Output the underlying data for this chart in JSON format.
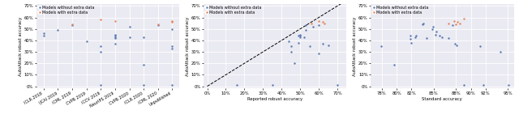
{
  "fig1": {
    "ylabel": "AutoAttack robust accuracy",
    "xlabel": "",
    "xlim": [
      -0.5,
      9.5
    ],
    "ylim": [
      -0.02,
      0.72
    ],
    "yticks": [
      0.0,
      0.1,
      0.2,
      0.3,
      0.4,
      0.5,
      0.6,
      0.7
    ],
    "xtick_labels": [
      "ICLR 2018",
      "IJCAI 2019",
      "ICML 2019",
      "CVPR 2019",
      "ICCV 2019",
      "NeurIPS 2019",
      "CVPR 2020",
      "ICLR 2020",
      "ICML 2020",
      "Unpublished"
    ],
    "blue_points": [
      [
        0,
        0.44
      ],
      [
        0,
        0.46
      ],
      [
        1,
        0.49
      ],
      [
        2,
        0.53
      ],
      [
        3,
        0.39
      ],
      [
        4,
        0.35
      ],
      [
        4,
        0.3
      ],
      [
        4,
        0.01
      ],
      [
        5,
        0.45
      ],
      [
        5,
        0.44
      ],
      [
        5,
        0.43
      ],
      [
        5,
        0.42
      ],
      [
        5,
        0.37
      ],
      [
        6,
        0.52
      ],
      [
        6,
        0.43
      ],
      [
        7,
        0.43
      ],
      [
        7,
        0.19
      ],
      [
        7,
        0.01
      ],
      [
        8,
        0.53
      ],
      [
        9,
        0.5
      ],
      [
        9,
        0.35
      ],
      [
        9,
        0.33
      ],
      [
        9,
        0.01
      ]
    ],
    "orange_points": [
      [
        2,
        0.54
      ],
      [
        4,
        0.58
      ],
      [
        5,
        0.57
      ],
      [
        8,
        0.54
      ],
      [
        9,
        0.57
      ],
      [
        9,
        0.56
      ]
    ]
  },
  "fig2": {
    "ylabel": "AutoAttack robust accuracy",
    "xlabel": "Reported robust accuracy",
    "xlim": [
      -0.02,
      0.75
    ],
    "ylim": [
      -0.02,
      0.72
    ],
    "yticks": [
      0.0,
      0.1,
      0.2,
      0.3,
      0.4,
      0.5,
      0.6,
      0.7
    ],
    "xticks": [
      0.0,
      0.1,
      0.2,
      0.3,
      0.4,
      0.5,
      0.6,
      0.7
    ],
    "blue_points": [
      [
        0.16,
        0.01
      ],
      [
        0.35,
        0.01
      ],
      [
        0.47,
        0.2
      ],
      [
        0.44,
        0.39
      ],
      [
        0.45,
        0.35
      ],
      [
        0.45,
        0.3
      ],
      [
        0.49,
        0.38
      ],
      [
        0.49,
        0.44
      ],
      [
        0.5,
        0.43
      ],
      [
        0.5,
        0.44
      ],
      [
        0.5,
        0.45
      ],
      [
        0.52,
        0.43
      ],
      [
        0.53,
        0.49
      ],
      [
        0.53,
        0.53
      ],
      [
        0.55,
        0.35
      ],
      [
        0.57,
        0.52
      ],
      [
        0.6,
        0.29
      ],
      [
        0.6,
        0.53
      ],
      [
        0.62,
        0.37
      ],
      [
        0.65,
        0.36
      ],
      [
        0.7,
        0.01
      ]
    ],
    "orange_points": [
      [
        0.56,
        0.55
      ],
      [
        0.6,
        0.57
      ],
      [
        0.62,
        0.56
      ],
      [
        0.63,
        0.55
      ]
    ]
  },
  "fig3": {
    "ylabel": "AutoAttack robust accuracy",
    "xlabel": "Standard accuracy",
    "xlim": [
      0.765,
      0.958
    ],
    "ylim": [
      -0.02,
      0.72
    ],
    "yticks": [
      0.0,
      0.1,
      0.2,
      0.3,
      0.4,
      0.5,
      0.6,
      0.7
    ],
    "xticks": [
      0.78,
      0.8,
      0.82,
      0.85,
      0.88,
      0.9,
      0.92,
      0.95
    ],
    "blue_points": [
      [
        0.779,
        0.35
      ],
      [
        0.797,
        0.19
      ],
      [
        0.818,
        0.44
      ],
      [
        0.818,
        0.41
      ],
      [
        0.82,
        0.38
      ],
      [
        0.825,
        0.43
      ],
      [
        0.826,
        0.44
      ],
      [
        0.835,
        0.54
      ],
      [
        0.836,
        0.55
      ],
      [
        0.84,
        0.42
      ],
      [
        0.848,
        0.5
      ],
      [
        0.849,
        0.52
      ],
      [
        0.852,
        0.45
      ],
      [
        0.853,
        0.48
      ],
      [
        0.858,
        0.44
      ],
      [
        0.861,
        0.43
      ],
      [
        0.87,
        0.42
      ],
      [
        0.875,
        0.53
      ],
      [
        0.879,
        0.37
      ],
      [
        0.881,
        0.36
      ],
      [
        0.891,
        0.01
      ],
      [
        0.912,
        0.35
      ],
      [
        0.917,
        0.01
      ],
      [
        0.94,
        0.3
      ],
      [
        0.951,
        0.01
      ]
    ],
    "orange_points": [
      [
        0.87,
        0.55
      ],
      [
        0.878,
        0.57
      ],
      [
        0.88,
        0.54
      ],
      [
        0.882,
        0.56
      ],
      [
        0.885,
        0.55
      ],
      [
        0.891,
        0.59
      ]
    ]
  },
  "blue_color": "#5a78b0",
  "orange_color": "#e8845a",
  "bg_color": "#eaeaf2",
  "grid_color": "#ffffff",
  "legend_labels": [
    "Models without extra data",
    "Models with extra data"
  ]
}
